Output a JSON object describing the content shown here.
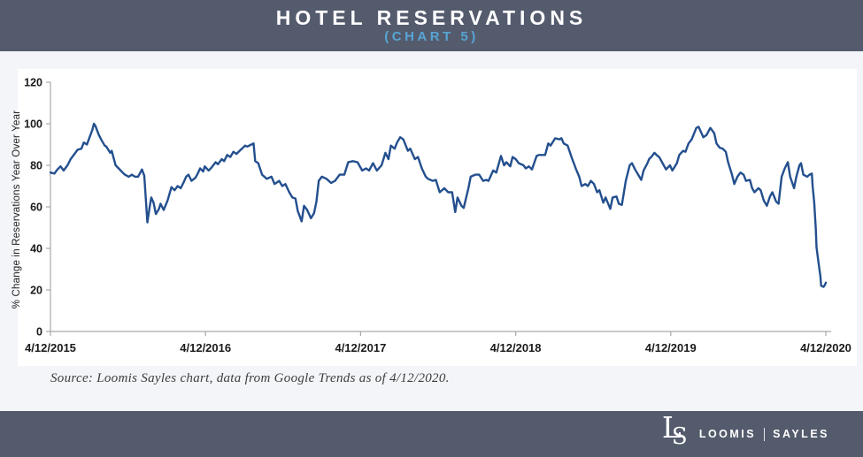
{
  "header": {
    "title": "HOTEL RESERVATIONS",
    "subtitle": "(CHART 5)"
  },
  "source_note": "Source: Loomis Sayles chart, data from Google Trends as of 4/12/2020.",
  "footer": {
    "monogram_l": "L",
    "monogram_s": "S",
    "brand_left": "LOOMIS",
    "brand_right": "SAYLES"
  },
  "colors": {
    "banner_bg": "#545B6D",
    "subtitle_blue": "#57A5D4",
    "line_navy": "#234F8E",
    "page_bg": "#F3F5F8",
    "panel_bg": "#FFFFFF",
    "axis_gray": "#A9A9A9",
    "tick_text": "#1A1A1A"
  },
  "chart_data": {
    "type": "line",
    "title": "HOTEL RESERVATIONS (CHART 5)",
    "ylabel": "% Change in Reservations Year Over Year",
    "xlabel": "",
    "ylim": [
      0,
      120
    ],
    "yticks": [
      0,
      20,
      40,
      60,
      80,
      100,
      120
    ],
    "xtick_labels": [
      "4/12/2015",
      "4/12/2016",
      "4/12/2017",
      "4/12/2018",
      "4/12/2019",
      "4/12/2020"
    ],
    "xtick_pos": [
      0,
      0.2,
      0.4,
      0.6,
      0.8,
      1
    ],
    "x_unit": "fraction of timespan 4/12/2015 to 4/12/2020",
    "grid": false,
    "legend": "none",
    "line_color": "#234F8E",
    "axis_color": "#A9A9A9",
    "series": [
      {
        "name": "Hotel reservations, % change year over year",
        "points": [
          [
            0.0,
            76.5
          ],
          [
            0.005,
            76
          ],
          [
            0.009,
            78
          ],
          [
            0.013,
            79.5
          ],
          [
            0.017,
            77.5
          ],
          [
            0.022,
            80
          ],
          [
            0.026,
            83
          ],
          [
            0.031,
            85.5
          ],
          [
            0.035,
            87.5
          ],
          [
            0.04,
            88
          ],
          [
            0.043,
            91
          ],
          [
            0.047,
            90
          ],
          [
            0.05,
            93
          ],
          [
            0.054,
            97
          ],
          [
            0.056,
            100
          ],
          [
            0.058,
            99
          ],
          [
            0.062,
            95
          ],
          [
            0.066,
            92
          ],
          [
            0.07,
            89.5
          ],
          [
            0.072,
            89
          ],
          [
            0.077,
            86
          ],
          [
            0.079,
            87
          ],
          [
            0.084,
            80
          ],
          [
            0.088,
            78.5
          ],
          [
            0.093,
            76.5
          ],
          [
            0.096,
            75.5
          ],
          [
            0.101,
            74.5
          ],
          [
            0.105,
            75.5
          ],
          [
            0.109,
            74.5
          ],
          [
            0.113,
            74.5
          ],
          [
            0.118,
            78
          ],
          [
            0.121,
            75
          ],
          [
            0.125,
            52.5
          ],
          [
            0.128,
            60
          ],
          [
            0.13,
            64.5
          ],
          [
            0.133,
            62
          ],
          [
            0.136,
            56.5
          ],
          [
            0.14,
            59
          ],
          [
            0.142,
            61.5
          ],
          [
            0.146,
            58.5
          ],
          [
            0.151,
            63
          ],
          [
            0.156,
            69.5
          ],
          [
            0.16,
            68
          ],
          [
            0.164,
            70
          ],
          [
            0.168,
            69
          ],
          [
            0.172,
            72
          ],
          [
            0.175,
            74.5
          ],
          [
            0.178,
            75.5
          ],
          [
            0.182,
            72.5
          ],
          [
            0.187,
            74
          ],
          [
            0.19,
            76
          ],
          [
            0.193,
            78.5
          ],
          [
            0.197,
            77
          ],
          [
            0.199,
            79.5
          ],
          [
            0.204,
            77.5
          ],
          [
            0.208,
            79
          ],
          [
            0.213,
            81.5
          ],
          [
            0.216,
            80.5
          ],
          [
            0.221,
            83
          ],
          [
            0.224,
            82
          ],
          [
            0.228,
            85
          ],
          [
            0.232,
            84
          ],
          [
            0.236,
            86.5
          ],
          [
            0.24,
            85.5
          ],
          [
            0.244,
            87
          ],
          [
            0.247,
            88
          ],
          [
            0.251,
            89.5
          ],
          [
            0.254,
            89
          ],
          [
            0.259,
            90
          ],
          [
            0.262,
            90.5
          ],
          [
            0.264,
            82
          ],
          [
            0.268,
            81
          ],
          [
            0.273,
            75.5
          ],
          [
            0.279,
            73.5
          ],
          [
            0.285,
            74.5
          ],
          [
            0.289,
            71
          ],
          [
            0.295,
            72.5
          ],
          [
            0.299,
            70
          ],
          [
            0.303,
            71
          ],
          [
            0.308,
            67
          ],
          [
            0.312,
            64.5
          ],
          [
            0.316,
            64
          ],
          [
            0.319,
            58
          ],
          [
            0.324,
            53
          ],
          [
            0.327,
            60.5
          ],
          [
            0.331,
            58.5
          ],
          [
            0.336,
            54.5
          ],
          [
            0.34,
            57
          ],
          [
            0.343,
            62.5
          ],
          [
            0.346,
            72.5
          ],
          [
            0.35,
            74.5
          ],
          [
            0.356,
            73.5
          ],
          [
            0.362,
            71.5
          ],
          [
            0.367,
            72.5
          ],
          [
            0.373,
            75.5
          ],
          [
            0.379,
            75.5
          ],
          [
            0.384,
            81.5
          ],
          [
            0.39,
            82
          ],
          [
            0.396,
            81.5
          ],
          [
            0.402,
            77.5
          ],
          [
            0.407,
            78.5
          ],
          [
            0.411,
            77.5
          ],
          [
            0.416,
            81
          ],
          [
            0.421,
            77.5
          ],
          [
            0.427,
            80
          ],
          [
            0.432,
            86
          ],
          [
            0.436,
            83
          ],
          [
            0.439,
            89.5
          ],
          [
            0.444,
            88
          ],
          [
            0.447,
            91
          ],
          [
            0.451,
            93.5
          ],
          [
            0.455,
            92.5
          ],
          [
            0.461,
            87
          ],
          [
            0.464,
            88
          ],
          [
            0.47,
            83
          ],
          [
            0.474,
            84
          ],
          [
            0.479,
            78.5
          ],
          [
            0.484,
            74.5
          ],
          [
            0.487,
            73.5
          ],
          [
            0.493,
            72.5
          ],
          [
            0.497,
            73
          ],
          [
            0.502,
            67
          ],
          [
            0.508,
            69
          ],
          [
            0.513,
            67
          ],
          [
            0.518,
            67
          ],
          [
            0.522,
            57.5
          ],
          [
            0.525,
            64.5
          ],
          [
            0.53,
            60.5
          ],
          [
            0.533,
            59.5
          ],
          [
            0.539,
            69
          ],
          [
            0.542,
            74.5
          ],
          [
            0.548,
            75.5
          ],
          [
            0.553,
            75.5
          ],
          [
            0.558,
            72.5
          ],
          [
            0.562,
            73
          ],
          [
            0.565,
            72.5
          ],
          [
            0.571,
            77.5
          ],
          [
            0.575,
            76.5
          ],
          [
            0.581,
            84.5
          ],
          [
            0.585,
            80
          ],
          [
            0.588,
            81.5
          ],
          [
            0.593,
            79.5
          ],
          [
            0.596,
            84
          ],
          [
            0.6,
            83
          ],
          [
            0.604,
            81
          ],
          [
            0.61,
            80
          ],
          [
            0.613,
            78.5
          ],
          [
            0.617,
            79.5
          ],
          [
            0.621,
            78
          ],
          [
            0.627,
            84.5
          ],
          [
            0.63,
            85
          ],
          [
            0.634,
            85
          ],
          [
            0.638,
            85
          ],
          [
            0.642,
            90.5
          ],
          [
            0.645,
            89.5
          ],
          [
            0.651,
            93
          ],
          [
            0.656,
            92.5
          ],
          [
            0.659,
            93
          ],
          [
            0.662,
            90.5
          ],
          [
            0.667,
            89.5
          ],
          [
            0.673,
            83
          ],
          [
            0.676,
            80
          ],
          [
            0.678,
            78
          ],
          [
            0.682,
            74.5
          ],
          [
            0.685,
            70
          ],
          [
            0.69,
            71
          ],
          [
            0.693,
            70
          ],
          [
            0.697,
            72.5
          ],
          [
            0.701,
            71
          ],
          [
            0.705,
            67
          ],
          [
            0.708,
            68
          ],
          [
            0.713,
            62
          ],
          [
            0.716,
            64.5
          ],
          [
            0.722,
            59
          ],
          [
            0.725,
            64.5
          ],
          [
            0.73,
            65
          ],
          [
            0.733,
            61.5
          ],
          [
            0.737,
            61
          ],
          [
            0.742,
            72.5
          ],
          [
            0.747,
            80
          ],
          [
            0.75,
            81
          ],
          [
            0.754,
            78
          ],
          [
            0.758,
            75.5
          ],
          [
            0.762,
            73
          ],
          [
            0.765,
            77.5
          ],
          [
            0.77,
            81
          ],
          [
            0.772,
            83
          ],
          [
            0.776,
            84.5
          ],
          [
            0.779,
            86
          ],
          [
            0.783,
            84.5
          ],
          [
            0.785,
            84
          ],
          [
            0.791,
            80
          ],
          [
            0.794,
            78
          ],
          [
            0.799,
            80
          ],
          [
            0.802,
            77.5
          ],
          [
            0.808,
            81
          ],
          [
            0.811,
            85
          ],
          [
            0.816,
            87
          ],
          [
            0.819,
            86.5
          ],
          [
            0.823,
            90.5
          ],
          [
            0.827,
            92.5
          ],
          [
            0.833,
            98
          ],
          [
            0.836,
            98.5
          ],
          [
            0.842,
            93.5
          ],
          [
            0.846,
            94.5
          ],
          [
            0.851,
            98
          ],
          [
            0.856,
            95.5
          ],
          [
            0.859,
            90.5
          ],
          [
            0.863,
            88.5
          ],
          [
            0.867,
            88
          ],
          [
            0.871,
            86.5
          ],
          [
            0.874,
            81.5
          ],
          [
            0.879,
            75.5
          ],
          [
            0.882,
            71
          ],
          [
            0.886,
            74.5
          ],
          [
            0.89,
            76.5
          ],
          [
            0.894,
            75.5
          ],
          [
            0.897,
            72.5
          ],
          [
            0.902,
            73
          ],
          [
            0.905,
            69
          ],
          [
            0.908,
            67
          ],
          [
            0.913,
            69
          ],
          [
            0.916,
            68
          ],
          [
            0.92,
            63
          ],
          [
            0.924,
            60.5
          ],
          [
            0.928,
            65
          ],
          [
            0.931,
            67
          ],
          [
            0.936,
            62.5
          ],
          [
            0.939,
            61.5
          ],
          [
            0.943,
            74.5
          ],
          [
            0.947,
            78.5
          ],
          [
            0.951,
            81.5
          ],
          [
            0.954,
            74.5
          ],
          [
            0.959,
            69
          ],
          [
            0.962,
            74.5
          ],
          [
            0.966,
            80
          ],
          [
            0.968,
            81
          ],
          [
            0.971,
            75.5
          ],
          [
            0.976,
            74.5
          ],
          [
            0.979,
            75.5
          ],
          [
            0.982,
            76
          ],
          [
            0.983,
            70
          ],
          [
            0.985,
            62
          ],
          [
            0.987,
            50
          ],
          [
            0.988,
            40.5
          ],
          [
            0.991,
            32
          ],
          [
            0.993,
            26.5
          ],
          [
            0.994,
            22
          ],
          [
            0.997,
            21.5
          ],
          [
            0.999,
            22.5
          ],
          [
            1.0,
            23.5
          ]
        ]
      }
    ]
  }
}
